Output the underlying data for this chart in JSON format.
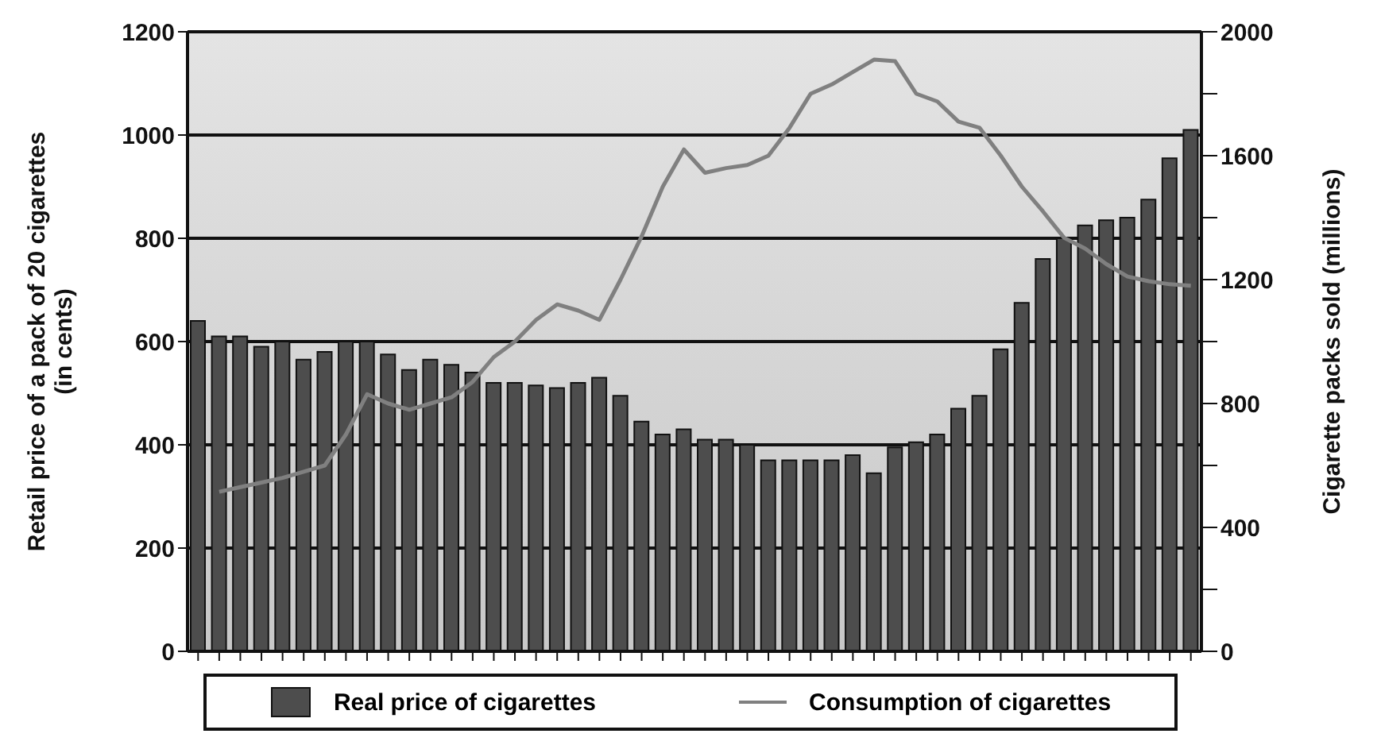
{
  "chart_data": {
    "type": "bar",
    "ylabel": "Retail price of a pack of 20 cigarettes (in cents)",
    "y2label": "Cigarette packs sold (millions)",
    "categories": [
      null,
      null,
      null,
      null,
      null,
      null,
      null,
      null,
      null,
      null,
      null,
      null,
      null,
      null,
      null,
      null,
      null,
      null,
      null,
      null,
      null,
      null,
      null,
      null,
      null,
      null,
      null,
      null,
      null,
      null,
      null,
      null,
      null,
      null,
      null,
      null,
      null,
      null,
      null,
      null,
      null,
      null,
      null,
      null,
      null,
      null,
      null,
      null
    ],
    "series": [
      {
        "name": "Real price of cigarettes",
        "color": "#4d4d4d",
        "values": [
          640,
          610,
          610,
          590,
          600,
          565,
          580,
          600,
          600,
          575,
          545,
          565,
          555,
          540,
          520,
          520,
          515,
          510,
          520,
          530,
          495,
          445,
          420,
          430,
          410,
          410,
          400,
          370,
          370,
          370,
          370,
          380,
          345,
          395,
          405,
          420,
          470,
          495,
          585,
          675,
          760,
          800,
          825,
          835,
          840,
          875,
          955,
          1010
        ]
      },
      {
        "name": "Consumption of cigarettes",
        "type": "line",
        "axis": "y2",
        "color": "#808080",
        "values": [
          null,
          515,
          530,
          545,
          560,
          580,
          600,
          700,
          830,
          800,
          780,
          800,
          820,
          870,
          950,
          1000,
          1070,
          1120,
          1100,
          1070,
          1200,
          1340,
          1500,
          1620,
          1545,
          1560,
          1570,
          1600,
          1690,
          1800,
          1830,
          1870,
          1910,
          1905,
          1800,
          1775,
          1710,
          1690,
          1600,
          1500,
          1420,
          1335,
          1300,
          1250,
          1210,
          1195,
          1185,
          1180
        ]
      }
    ],
    "ylim": [
      0,
      1200
    ],
    "yticks": [
      0,
      200,
      400,
      600,
      800,
      1000,
      1200
    ],
    "y2lim": [
      0,
      2000
    ],
    "y2ticks": [
      0,
      {
        "value": 200,
        "label": null
      },
      400,
      {
        "value": 600,
        "label": null
      },
      800,
      {
        "value": 1000,
        "label": null
      },
      1200,
      {
        "value": 1400,
        "label": null
      },
      1600,
      {
        "value": 1800,
        "label": null
      },
      2000
    ],
    "grid": "y",
    "legend": "bottom",
    "line_style": "solid",
    "marker": "none"
  }
}
